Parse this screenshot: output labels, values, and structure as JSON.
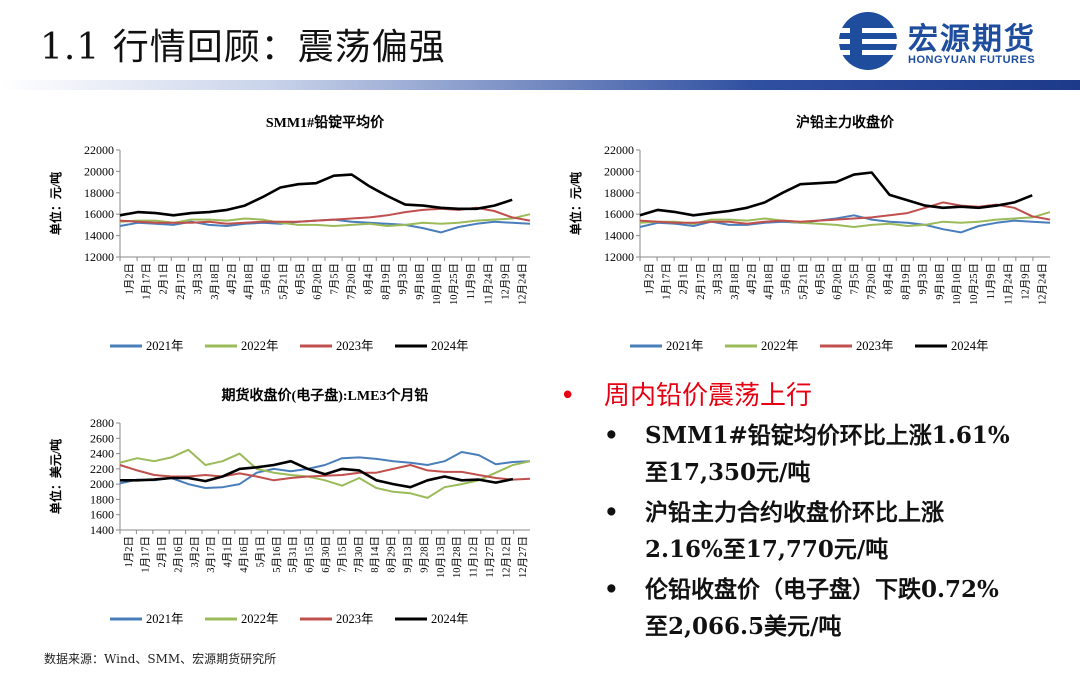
{
  "header": {
    "title": "1.1 行情回顾：震荡偏强",
    "logo_cn": "宏源期货",
    "logo_en": "HONGYUAN FUTURES"
  },
  "colors": {
    "2021": "#4a7ebb",
    "2022": "#9bbb59",
    "2023": "#c0504d",
    "2024": "#000000"
  },
  "chart_data": [
    {
      "type": "line",
      "title": "SMM1#铅锭平均价",
      "ylabel": "单位：元/吨",
      "ylim": [
        12000,
        22000
      ],
      "yticks": [
        "12000",
        "14000",
        "16000",
        "18000",
        "20000",
        "22000"
      ],
      "xticks": [
        "1月2日",
        "1月17日",
        "2月1日",
        "2月17日",
        "3月3日",
        "3月18日",
        "4月2日",
        "4月18日",
        "5月6日",
        "5月21日",
        "6月5日",
        "6月20日",
        "7月5日",
        "7月20日",
        "8月4日",
        "8月19日",
        "9月3日",
        "9月18日",
        "10月10日",
        "10月25日",
        "11月9日",
        "11月24日",
        "12月9日",
        "12月24日"
      ],
      "series": [
        {
          "name": "2021年",
          "values": [
            14900,
            15200,
            15100,
            15000,
            15300,
            15000,
            14900,
            15100,
            15200,
            15100,
            15300,
            15400,
            15500,
            15300,
            15200,
            15100,
            15000,
            14700,
            14300,
            14800,
            15100,
            15300,
            15200,
            15100
          ]
        },
        {
          "name": "2022年",
          "values": [
            15300,
            15400,
            15400,
            15200,
            15500,
            15500,
            15400,
            15600,
            15500,
            15200,
            15000,
            15000,
            14900,
            15000,
            15100,
            14900,
            15000,
            15200,
            15100,
            15200,
            15400,
            15500,
            15600,
            16000
          ]
        },
        {
          "name": "2023年",
          "values": [
            15400,
            15300,
            15200,
            15200,
            15200,
            15300,
            15100,
            15200,
            15300,
            15300,
            15300,
            15400,
            15500,
            15600,
            15700,
            15900,
            16200,
            16400,
            16500,
            16400,
            16600,
            16300,
            15700,
            15400
          ]
        },
        {
          "name": "2024年",
          "values": [
            15900,
            16200,
            16100,
            15900,
            16100,
            16200,
            16400,
            16800,
            17600,
            18500,
            18800,
            18900,
            19600,
            19700,
            18600,
            17700,
            16900,
            16800,
            16600,
            16500,
            16500,
            16800,
            17350,
            null
          ]
        }
      ]
    },
    {
      "type": "line",
      "title": "沪铅主力收盘价",
      "ylabel": "单位：元/吨",
      "ylim": [
        12000,
        22000
      ],
      "yticks": [
        "12000",
        "14000",
        "16000",
        "18000",
        "20000",
        "22000"
      ],
      "xticks": [
        "1月2日",
        "1月17日",
        "2月1日",
        "2月17日",
        "3月3日",
        "3月18日",
        "4月2日",
        "4月18日",
        "5月6日",
        "5月21日",
        "6月5日",
        "6月20日",
        "7月5日",
        "7月20日",
        "8月4日",
        "8月19日",
        "9月3日",
        "9月18日",
        "10月10日",
        "10月25日",
        "11月9日",
        "11月24日",
        "12月9日",
        "12月24日"
      ],
      "series": [
        {
          "name": "2021年",
          "values": [
            14800,
            15200,
            15100,
            14900,
            15300,
            15000,
            15000,
            15200,
            15300,
            15200,
            15400,
            15600,
            15900,
            15500,
            15300,
            15200,
            15000,
            14600,
            14300,
            14900,
            15200,
            15400,
            15300,
            15200
          ]
        },
        {
          "name": "2022年",
          "values": [
            15200,
            15300,
            15300,
            15100,
            15500,
            15500,
            15400,
            15600,
            15400,
            15200,
            15100,
            15000,
            14800,
            15000,
            15100,
            14900,
            15000,
            15300,
            15200,
            15300,
            15500,
            15600,
            15700,
            16200
          ]
        },
        {
          "name": "2023年",
          "values": [
            15400,
            15300,
            15200,
            15200,
            15300,
            15300,
            15100,
            15300,
            15400,
            15300,
            15400,
            15500,
            15600,
            15700,
            15900,
            16100,
            16600,
            17100,
            16800,
            16700,
            16900,
            16600,
            15800,
            15500
          ]
        },
        {
          "name": "2024年",
          "values": [
            15900,
            16400,
            16200,
            15900,
            16100,
            16300,
            16600,
            17100,
            18000,
            18800,
            18900,
            19000,
            19700,
            19900,
            17800,
            17300,
            16800,
            16600,
            16700,
            16600,
            16800,
            17100,
            17770,
            null
          ]
        }
      ]
    },
    {
      "type": "line",
      "title": "期货收盘价(电子盘):LME3个月铅",
      "ylabel": "单位：美元/吨",
      "ylim": [
        1400,
        2800
      ],
      "yticks": [
        "1400",
        "1600",
        "1800",
        "2000",
        "2200",
        "2400",
        "2600",
        "2800"
      ],
      "xticks": [
        "1月2日",
        "1月17日",
        "2月1日",
        "2月16日",
        "3月2日",
        "3月17日",
        "4月1日",
        "4月16日",
        "5月1日",
        "5月16日",
        "5月31日",
        "6月15日",
        "6月30日",
        "7月15日",
        "7月30日",
        "8月14日",
        "8月29日",
        "9月13日",
        "9月28日",
        "10月13日",
        "10月28日",
        "11月12日",
        "11月27日",
        "12月12日",
        "12月27日"
      ],
      "series": [
        {
          "name": "2021年",
          "values": [
            2010,
            2060,
            2050,
            2080,
            2000,
            1950,
            1960,
            2000,
            2150,
            2200,
            2170,
            2200,
            2250,
            2340,
            2350,
            2330,
            2300,
            2280,
            2250,
            2300,
            2420,
            2380,
            2260,
            2290,
            2300
          ]
        },
        {
          "name": "2022年",
          "values": [
            2280,
            2340,
            2300,
            2350,
            2450,
            2250,
            2300,
            2400,
            2200,
            2150,
            2120,
            2100,
            2050,
            1980,
            2080,
            1950,
            1900,
            1880,
            1820,
            1960,
            2000,
            2050,
            2150,
            2250,
            2300
          ]
        },
        {
          "name": "2023年",
          "values": [
            2250,
            2180,
            2120,
            2100,
            2100,
            2120,
            2100,
            2140,
            2100,
            2050,
            2080,
            2100,
            2110,
            2120,
            2150,
            2150,
            2200,
            2250,
            2180,
            2160,
            2160,
            2120,
            2080,
            2060,
            2070
          ]
        },
        {
          "name": "2024年",
          "values": [
            2050,
            2050,
            2060,
            2080,
            2080,
            2040,
            2100,
            2200,
            2220,
            2250,
            2300,
            2200,
            2130,
            2200,
            2180,
            2050,
            2000,
            1960,
            2050,
            2100,
            2050,
            2060,
            2020,
            2066,
            null
          ]
        }
      ]
    }
  ],
  "bullets": {
    "main": "周内铅价震荡上行",
    "items": [
      {
        "line1": "SMM1#铅锭均价环比上涨1.61%",
        "line2": "至17,350元/吨"
      },
      {
        "line1": "沪铅主力合约收盘价环比上涨",
        "line2": "2.16%至17,770元/吨"
      },
      {
        "line1": "伦铅收盘价（电子盘）下跌0.72%",
        "line2": "至2,066.5美元/吨"
      }
    ]
  },
  "footer": {
    "source": "数据来源：Wind、SMM、宏源期货研究所"
  }
}
